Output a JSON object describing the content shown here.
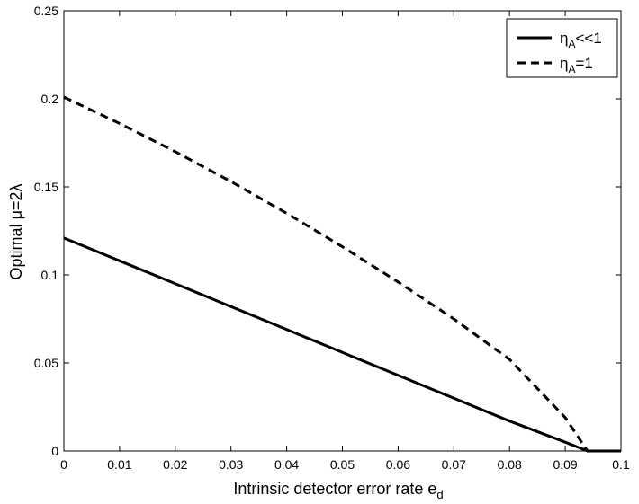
{
  "chart_data": {
    "type": "line",
    "title": "",
    "xlabel": "Intrinsic detector error rate e",
    "xlabel_sub": "d",
    "ylabel": "Optimal μ=2λ",
    "xlim": [
      0,
      0.1
    ],
    "ylim": [
      0,
      0.25
    ],
    "xticks": [
      "0",
      "0.01",
      "0.02",
      "0.03",
      "0.04",
      "0.05",
      "0.06",
      "0.07",
      "0.08",
      "0.09",
      "0.1"
    ],
    "yticks": [
      "0",
      "0.05",
      "0.1",
      "0.15",
      "0.2",
      "0.25"
    ],
    "grid": false,
    "legend_position": "top-right",
    "series": [
      {
        "name": "ηA<<1",
        "legend_main": "η",
        "legend_sub": "A",
        "legend_rest": "<<1",
        "style": "solid",
        "color": "#000000",
        "x": [
          0,
          0.01,
          0.02,
          0.03,
          0.04,
          0.05,
          0.06,
          0.07,
          0.08,
          0.09,
          0.094,
          0.1
        ],
        "y": [
          0.121,
          0.108,
          0.095,
          0.082,
          0.069,
          0.056,
          0.043,
          0.03,
          0.017,
          0.005,
          0.0,
          0.0
        ]
      },
      {
        "name": "ηA=1",
        "legend_main": "η",
        "legend_sub": "A",
        "legend_rest": "=1",
        "style": "dashed",
        "color": "#000000",
        "x": [
          0,
          0.01,
          0.02,
          0.03,
          0.04,
          0.05,
          0.06,
          0.07,
          0.08,
          0.09,
          0.094,
          0.1
        ],
        "y": [
          0.201,
          0.186,
          0.17,
          0.153,
          0.135,
          0.116,
          0.096,
          0.075,
          0.052,
          0.019,
          0.0,
          0.0
        ]
      }
    ]
  }
}
